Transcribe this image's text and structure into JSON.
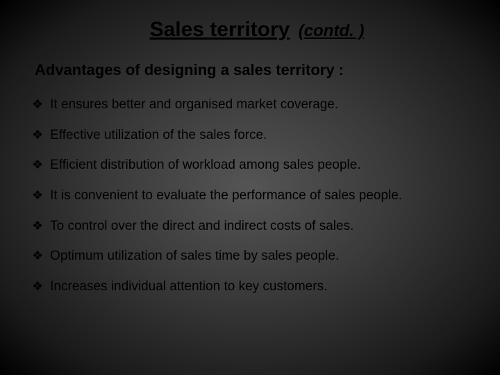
{
  "title": {
    "main": "Sales territory",
    "sub": "(contd. )"
  },
  "subheading": "Advantages of designing a sales territory :",
  "bullet_glyph": "❖",
  "bullets": [
    "It ensures better and organised market coverage.",
    "Effective utilization of the sales force.",
    "Efficient distribution of workload among sales people.",
    "It is convenient to evaluate the performance of sales people.",
    "To control over the direct and indirect costs of sales.",
    "Optimum utilization of sales time by sales people.",
    "Increases individual attention to key customers."
  ],
  "colors": {
    "text": "#000000",
    "bg_center": "#555555",
    "bg_edge": "#000000"
  }
}
